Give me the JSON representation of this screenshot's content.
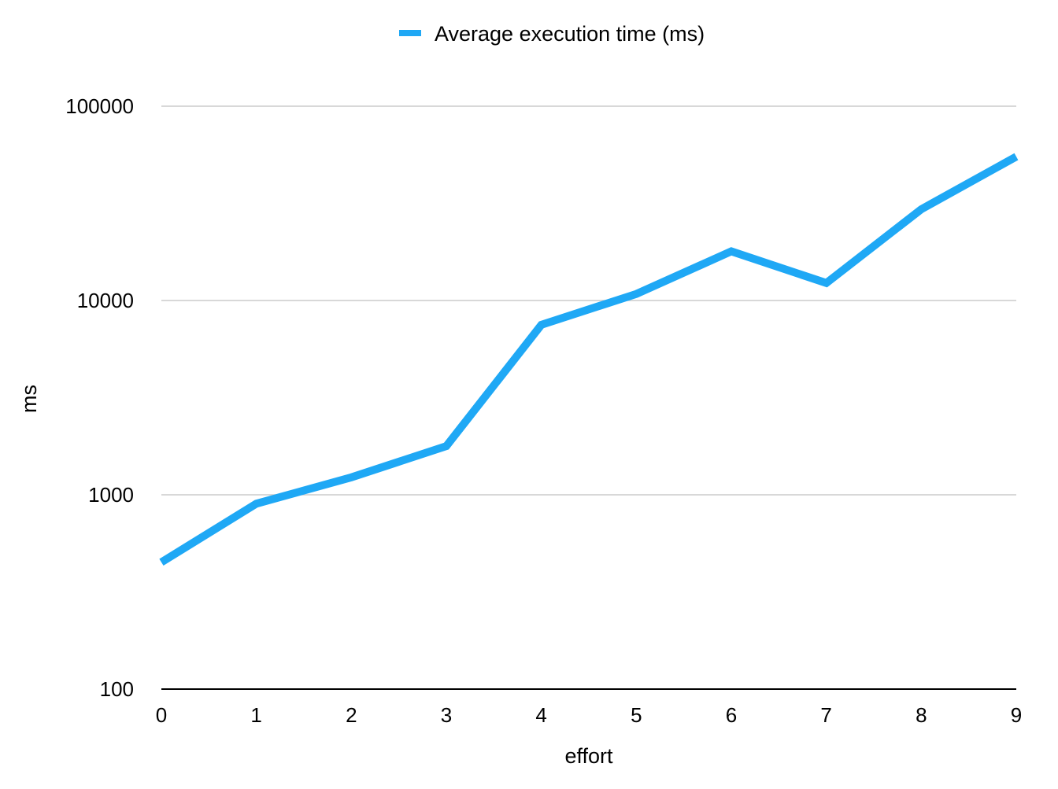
{
  "chart_data": {
    "type": "line",
    "title": "",
    "xlabel": "effort",
    "ylabel": "ms",
    "y_scale": "log",
    "ylim": [
      100,
      100000
    ],
    "y_ticks": [
      "100",
      "1000",
      "10000",
      "100000"
    ],
    "x": [
      0,
      1,
      2,
      3,
      4,
      5,
      6,
      7,
      8,
      9
    ],
    "x_tick_labels": [
      "0",
      "1",
      "2",
      "3",
      "4",
      "5",
      "6",
      "7",
      "8",
      "9"
    ],
    "grid": true,
    "legend_position": "top-center",
    "series": [
      {
        "name": "Average execution time (ms)",
        "color": "#1fa8f5",
        "values": [
          450,
          900,
          1230,
          1780,
          7500,
          10800,
          17900,
          12300,
          29500,
          55000
        ]
      }
    ]
  }
}
